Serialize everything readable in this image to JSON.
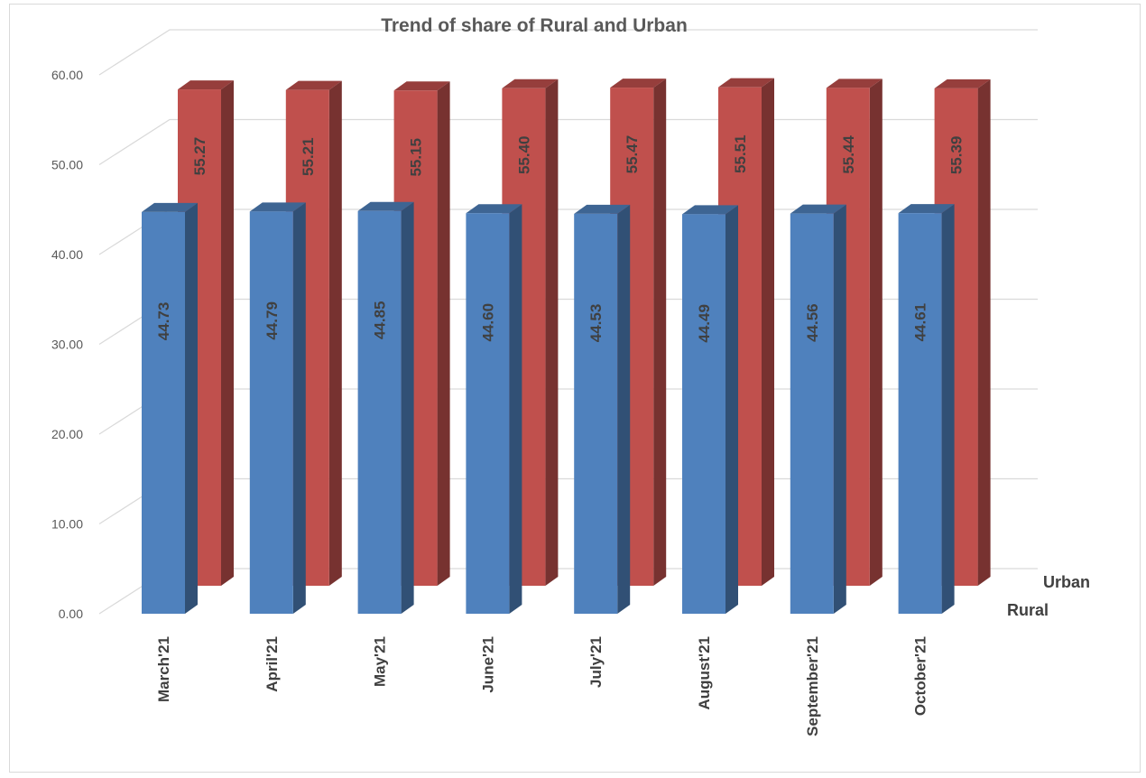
{
  "chart_data": {
    "type": "bar",
    "title": "Trend of  share of Rural and Urban",
    "categories": [
      "March'21",
      "April'21",
      "May'21",
      "June'21",
      "July'21",
      "August'21",
      "September'21",
      "October'21"
    ],
    "series": [
      {
        "name": "Rural",
        "values": [
          44.73,
          44.79,
          44.85,
          44.6,
          44.53,
          44.49,
          44.56,
          44.61
        ],
        "labels": [
          "44.73",
          "44.79",
          "44.85",
          "44.60",
          "44.53",
          "44.49",
          "44.56",
          "44.61"
        ],
        "color": "#4f81bd"
      },
      {
        "name": "Urban",
        "values": [
          55.27,
          55.21,
          55.15,
          55.4,
          55.47,
          55.51,
          55.44,
          55.39
        ],
        "labels": [
          "55.27",
          "55.21",
          "55.15",
          "55.40",
          "55.47",
          "55.51",
          "55.44",
          "55.39"
        ],
        "color": "#c0504d"
      }
    ],
    "yticks": [
      "0.00",
      "10.00",
      "20.00",
      "30.00",
      "40.00",
      "50.00",
      "60.00"
    ],
    "ylim": [
      0,
      60
    ],
    "grid": true,
    "style": "3d-column"
  }
}
